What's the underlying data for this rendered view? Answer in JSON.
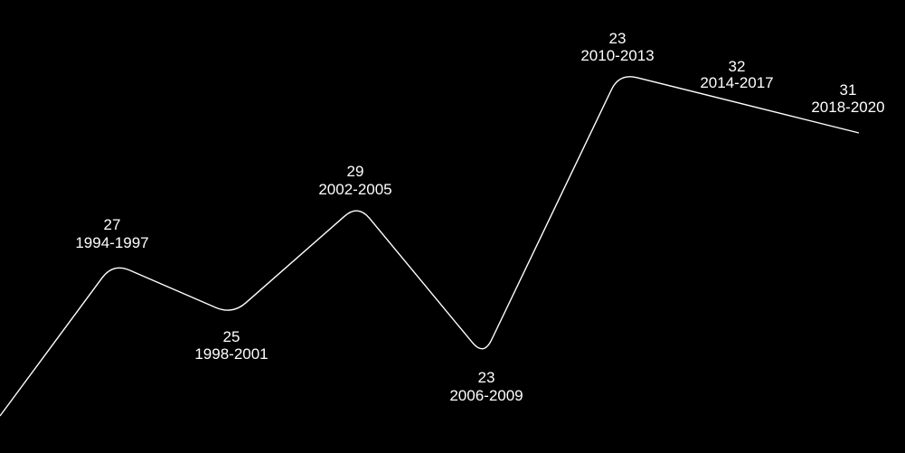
{
  "colors": {
    "background": "#000000",
    "line": "#ffffff",
    "text": "#ffffff"
  },
  "chart_data": {
    "type": "line",
    "title": "",
    "xlabel": "",
    "ylabel": "",
    "grid": false,
    "legend": "none",
    "categories": [
      "1994-1997",
      "1998-2001",
      "2002-2005",
      "2006-2009",
      "2010-2013",
      "2014-2017",
      "2018-2020"
    ],
    "values": [
      27,
      25,
      29,
      23,
      23,
      32,
      31
    ],
    "data_labels": [
      {
        "value": "27",
        "period": "1994-1997"
      },
      {
        "value": "25",
        "period": "1998-2001"
      },
      {
        "value": "29",
        "period": "2002-2005"
      },
      {
        "value": "23",
        "period": "2006-2009"
      },
      {
        "value": "23",
        "period": "2010-2013"
      },
      {
        "value": "32",
        "period": "2014-2017"
      },
      {
        "value": "31",
        "period": "2018-2020"
      }
    ]
  }
}
